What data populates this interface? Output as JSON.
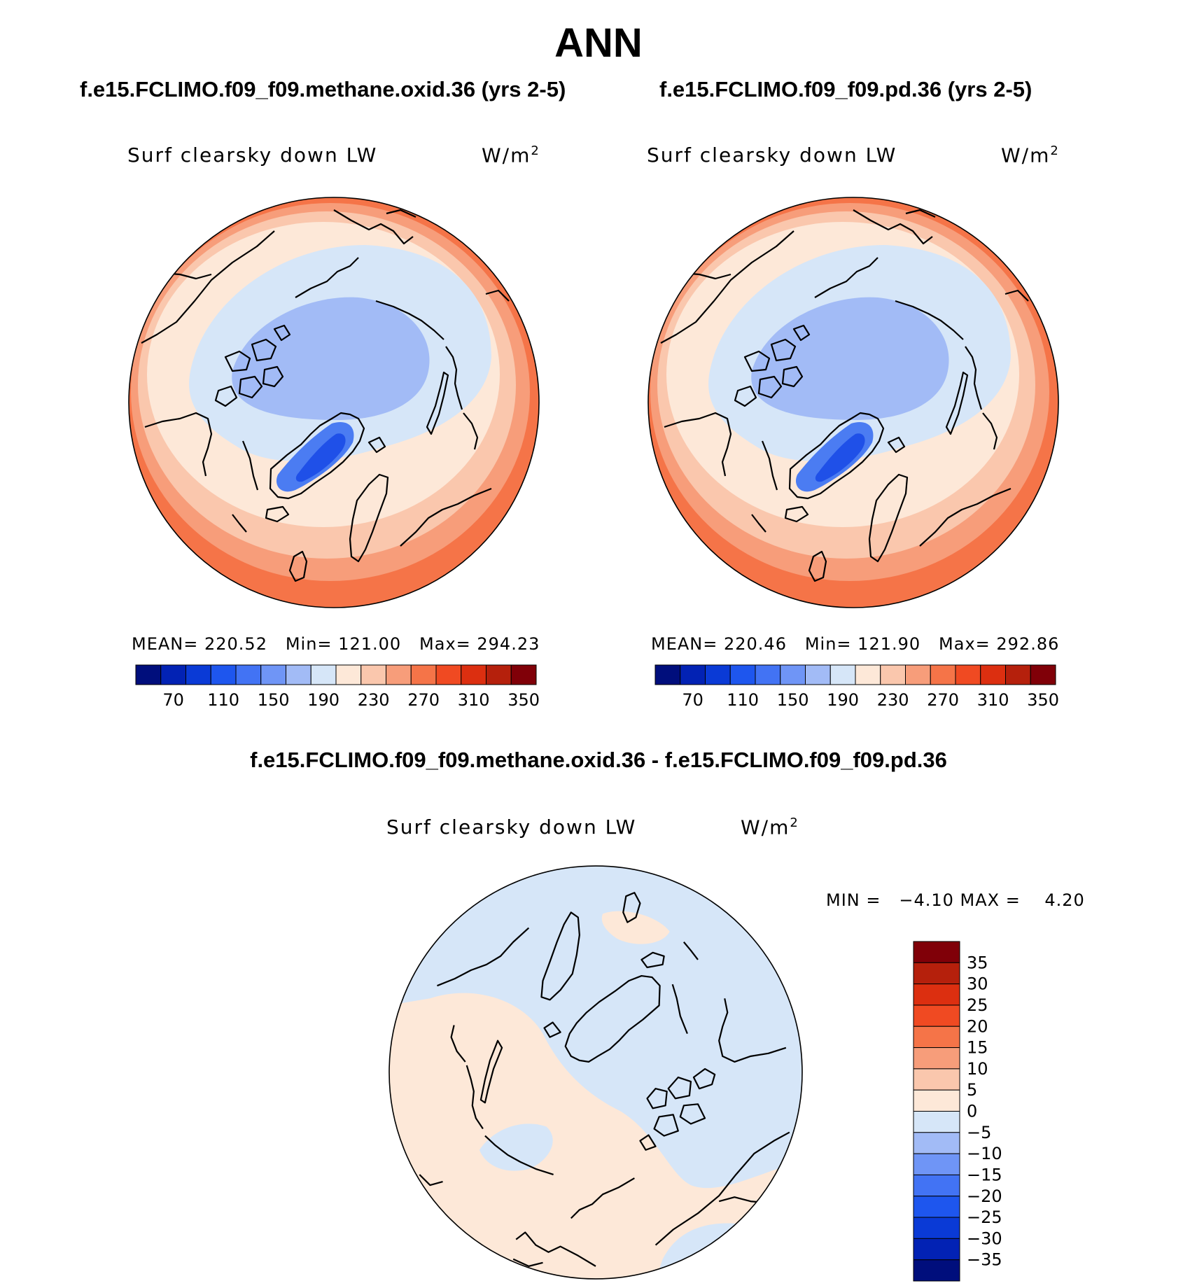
{
  "figure_title": "ANN",
  "panels": {
    "left": {
      "case_title": "f.e15.FCLIMO.f09_f09.methane.oxid.36 (yrs 2-5)",
      "variable_label": "Surf clearsky down LW",
      "units_label": "W/m",
      "units_superscript": "2",
      "stats": "MEAN= 220.52   Min= 121.00   Max= 294.23",
      "stat_values": {
        "mean": 220.52,
        "min": 121.0,
        "max": 294.23
      }
    },
    "right": {
      "case_title": "f.e15.FCLIMO.f09_f09.pd.36 (yrs 2-5)",
      "variable_label": "Surf clearsky down LW",
      "units_label": "W/m",
      "units_superscript": "2",
      "stats": "MEAN= 220.46   Min= 121.90   Max= 292.86",
      "stat_values": {
        "mean": 220.46,
        "min": 121.9,
        "max": 292.86
      }
    },
    "difference": {
      "case_title": "f.e15.FCLIMO.f09_f09.methane.oxid.36 - f.e15.FCLIMO.f09_f09.pd.36",
      "variable_label": "Surf clearsky down LW",
      "units_label": "W/m",
      "units_superscript": "2",
      "stats": "MIN =   −4.10 MAX =    4.20",
      "stat_values": {
        "min": -4.1,
        "max": 4.2
      }
    }
  },
  "colorbars": {
    "absolute": {
      "colors": [
        "#000e7c",
        "#0222b4",
        "#0a3ad6",
        "#1e56ee",
        "#4273f4",
        "#6f95f6",
        "#a2bbf6",
        "#d6e6f8",
        "#fde8d8",
        "#fac7ad",
        "#f79d7a",
        "#f57448",
        "#f04a22",
        "#dc2f10",
        "#b5200c",
        "#800008"
      ],
      "tick_labels": [
        "70",
        "110",
        "150",
        "190",
        "230",
        "270",
        "310",
        "350"
      ]
    },
    "difference": {
      "colors": [
        "#800008",
        "#b5200c",
        "#dc2f10",
        "#f04a22",
        "#f57448",
        "#f79d7a",
        "#fac7ad",
        "#fde8d8",
        "#d6e6f8",
        "#a2bbf6",
        "#6f95f6",
        "#4273f4",
        "#1e56ee",
        "#0a3ad6",
        "#0222b4",
        "#000e7c"
      ],
      "tick_labels": [
        "35",
        "30",
        "25",
        "20",
        "15",
        "10",
        "5",
        "0",
        "−5",
        "−10",
        "−15",
        "−20",
        "−25",
        "−30",
        "−35"
      ]
    }
  },
  "map": {
    "projection": "north polar stereographic",
    "field_colors": {
      "very_low": "#1f50e8",
      "low": "#4b7cf2",
      "mid_low": "#a2bbf6",
      "near_low": "#d6e6f8",
      "near_high": "#fde8d8",
      "mid_high": "#fac7ad",
      "high": "#f79d7a",
      "very_high": "#f57448"
    },
    "diff_colors": {
      "negative": "#d6e6f8",
      "positive": "#fde8d8"
    }
  }
}
